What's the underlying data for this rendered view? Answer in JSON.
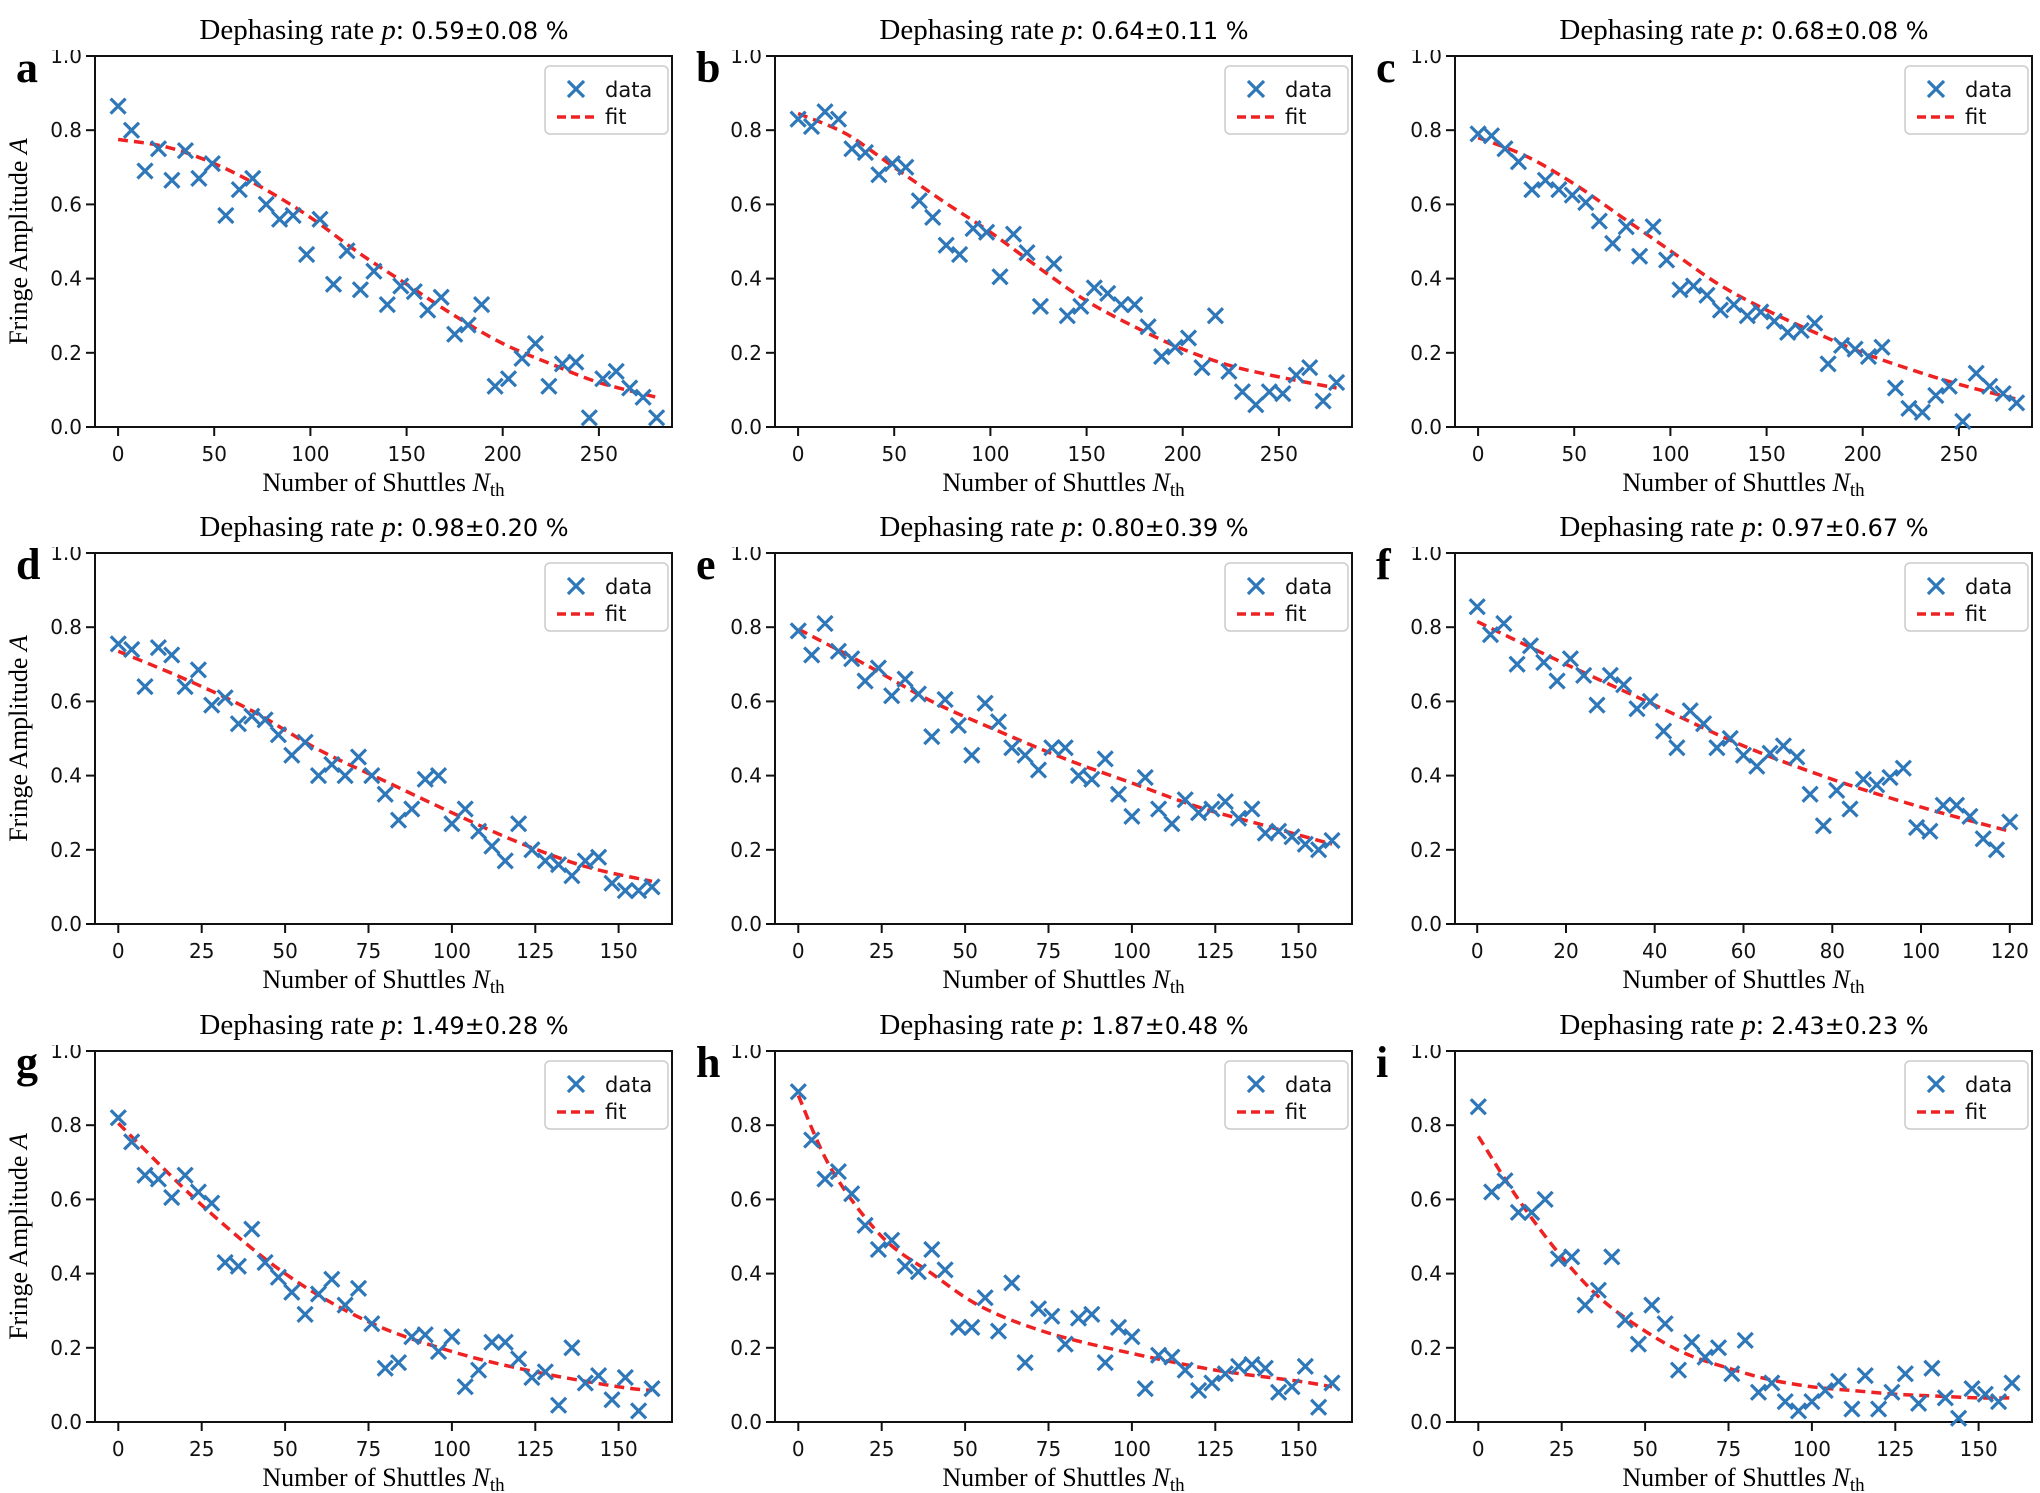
{
  "figure": {
    "title_prefix": "Dephasing rate ",
    "title_symbol": "p",
    "title_sep": ": ",
    "xlabel": {
      "text": "Number of Shuttles",
      "symbol": "N",
      "subscript": "th"
    },
    "ylabel": {
      "text": "Fringe Amplitude",
      "symbol": "A"
    },
    "legend": {
      "data_label": "data",
      "fit_label": "fit",
      "position": "upper right"
    },
    "yticks": [
      0.0,
      0.2,
      0.4,
      0.6,
      0.8,
      1.0
    ],
    "ylim": [
      0,
      1
    ],
    "grid": "off",
    "colors": {
      "data_marker": "#2e77b8",
      "fit_line": "#ee2222",
      "axis": "#111111",
      "legend_border": "#cccccc",
      "background": "#ffffff"
    }
  },
  "chart_data": [
    {
      "panel": "a",
      "type": "scatter",
      "title": "Dephasing rate p: 0.59±0.08 %",
      "title_value": "0.59±0.08 %",
      "p": 0.59,
      "p_err": 0.08,
      "xlabel": "Number of Shuttles N_th",
      "ylabel": "Fringe Amplitude A",
      "legend": [
        "data",
        "fit"
      ],
      "xlim": [
        -12,
        288
      ],
      "ylim": [
        0,
        1
      ],
      "xticks": [
        0,
        50,
        100,
        150,
        200,
        250
      ],
      "x": [
        0,
        7,
        14,
        21,
        28,
        35,
        42,
        49,
        56,
        63,
        70,
        77,
        84,
        91,
        98,
        105,
        112,
        119,
        126,
        133,
        140,
        147,
        154,
        161,
        168,
        175,
        182,
        189,
        196,
        203,
        210,
        217,
        224,
        231,
        238,
        245,
        252,
        259,
        266,
        273,
        280
      ],
      "y": [
        0.865,
        0.8,
        0.69,
        0.75,
        0.665,
        0.745,
        0.67,
        0.71,
        0.57,
        0.64,
        0.67,
        0.6,
        0.56,
        0.57,
        0.465,
        0.56,
        0.385,
        0.475,
        0.37,
        0.42,
        0.33,
        0.38,
        0.365,
        0.315,
        0.35,
        0.25,
        0.275,
        0.33,
        0.11,
        0.13,
        0.185,
        0.225,
        0.11,
        0.17,
        0.175,
        0.025,
        0.13,
        0.15,
        0.105,
        0.08,
        0.025
      ],
      "fit_x": [
        0,
        25,
        50,
        75,
        100,
        125,
        150,
        175,
        200,
        225,
        250,
        280
      ],
      "fit_y": [
        0.775,
        0.755,
        0.71,
        0.645,
        0.565,
        0.47,
        0.385,
        0.3,
        0.225,
        0.17,
        0.12,
        0.08
      ]
    },
    {
      "panel": "b",
      "type": "scatter",
      "title": "Dephasing rate p: 0.64±0.11 %",
      "title_value": "0.64±0.11 %",
      "p": 0.64,
      "p_err": 0.11,
      "xlabel": "Number of Shuttles N_th",
      "ylabel": "Fringe Amplitude A",
      "legend": [
        "data",
        "fit"
      ],
      "xlim": [
        -12,
        288
      ],
      "ylim": [
        0,
        1
      ],
      "xticks": [
        0,
        50,
        100,
        150,
        200,
        250
      ],
      "x": [
        0,
        7,
        14,
        21,
        28,
        35,
        42,
        49,
        56,
        63,
        70,
        77,
        84,
        91,
        98,
        105,
        112,
        119,
        126,
        133,
        140,
        147,
        154,
        161,
        168,
        175,
        182,
        189,
        196,
        203,
        210,
        217,
        224,
        231,
        238,
        245,
        252,
        259,
        266,
        273,
        280
      ],
      "y": [
        0.83,
        0.81,
        0.85,
        0.83,
        0.75,
        0.74,
        0.68,
        0.71,
        0.7,
        0.61,
        0.565,
        0.49,
        0.465,
        0.535,
        0.525,
        0.405,
        0.52,
        0.47,
        0.325,
        0.44,
        0.3,
        0.325,
        0.375,
        0.36,
        0.33,
        0.33,
        0.27,
        0.19,
        0.215,
        0.24,
        0.16,
        0.3,
        0.15,
        0.095,
        0.06,
        0.095,
        0.09,
        0.14,
        0.16,
        0.07,
        0.12
      ],
      "fit_x": [
        0,
        25,
        50,
        75,
        100,
        125,
        150,
        175,
        200,
        225,
        250,
        280
      ],
      "fit_y": [
        0.845,
        0.79,
        0.7,
        0.61,
        0.525,
        0.43,
        0.34,
        0.27,
        0.21,
        0.165,
        0.135,
        0.105
      ]
    },
    {
      "panel": "c",
      "type": "scatter",
      "title": "Dephasing rate p: 0.68±0.08 %",
      "title_value": "0.68±0.08 %",
      "p": 0.68,
      "p_err": 0.08,
      "xlabel": "Number of Shuttles N_th",
      "ylabel": "Fringe Amplitude A",
      "legend": [
        "data",
        "fit"
      ],
      "xlim": [
        -12,
        288
      ],
      "ylim": [
        0,
        1
      ],
      "xticks": [
        0,
        50,
        100,
        150,
        200,
        250
      ],
      "x": [
        0,
        7,
        14,
        21,
        28,
        35,
        42,
        49,
        56,
        63,
        70,
        77,
        84,
        91,
        98,
        105,
        112,
        119,
        126,
        133,
        140,
        147,
        154,
        161,
        168,
        175,
        182,
        189,
        196,
        203,
        210,
        217,
        224,
        231,
        238,
        245,
        252,
        259,
        266,
        273,
        280
      ],
      "y": [
        0.79,
        0.785,
        0.75,
        0.715,
        0.64,
        0.665,
        0.64,
        0.625,
        0.605,
        0.555,
        0.495,
        0.54,
        0.46,
        0.54,
        0.45,
        0.37,
        0.38,
        0.355,
        0.315,
        0.33,
        0.3,
        0.31,
        0.285,
        0.255,
        0.26,
        0.28,
        0.17,
        0.22,
        0.21,
        0.19,
        0.215,
        0.105,
        0.05,
        0.04,
        0.085,
        0.11,
        0.015,
        0.145,
        0.11,
        0.09,
        0.065
      ],
      "fit_x": [
        0,
        25,
        50,
        75,
        100,
        125,
        150,
        175,
        200,
        225,
        250,
        280
      ],
      "fit_y": [
        0.78,
        0.73,
        0.655,
        0.565,
        0.475,
        0.385,
        0.315,
        0.255,
        0.2,
        0.155,
        0.115,
        0.075
      ]
    },
    {
      "panel": "d",
      "type": "scatter",
      "title": "Dephasing rate p: 0.98±0.20 %",
      "title_value": "0.98±0.20 %",
      "p": 0.98,
      "p_err": 0.2,
      "xlabel": "Number of Shuttles N_th",
      "ylabel": "Fringe Amplitude A",
      "legend": [
        "data",
        "fit"
      ],
      "xlim": [
        -7,
        166
      ],
      "ylim": [
        0,
        1
      ],
      "xticks": [
        0,
        25,
        50,
        75,
        100,
        125,
        150
      ],
      "x": [
        0,
        4,
        8,
        12,
        16,
        20,
        24,
        28,
        32,
        36,
        40,
        44,
        48,
        52,
        56,
        60,
        64,
        68,
        72,
        76,
        80,
        84,
        88,
        92,
        96,
        100,
        104,
        108,
        112,
        116,
        120,
        124,
        128,
        132,
        136,
        140,
        144,
        148,
        152,
        156,
        160
      ],
      "y": [
        0.755,
        0.74,
        0.64,
        0.745,
        0.725,
        0.64,
        0.685,
        0.59,
        0.61,
        0.54,
        0.56,
        0.55,
        0.51,
        0.455,
        0.49,
        0.4,
        0.43,
        0.4,
        0.45,
        0.4,
        0.35,
        0.28,
        0.31,
        0.39,
        0.4,
        0.27,
        0.31,
        0.25,
        0.21,
        0.17,
        0.27,
        0.2,
        0.17,
        0.16,
        0.13,
        0.17,
        0.18,
        0.11,
        0.09,
        0.09,
        0.1
      ],
      "fit_x": [
        0,
        20,
        40,
        60,
        80,
        100,
        120,
        140,
        160
      ],
      "fit_y": [
        0.735,
        0.66,
        0.575,
        0.47,
        0.385,
        0.3,
        0.22,
        0.155,
        0.115
      ]
    },
    {
      "panel": "e",
      "type": "scatter",
      "title": "Dephasing rate p: 0.80±0.39 %",
      "title_value": "0.80±0.39 %",
      "p": 0.8,
      "p_err": 0.39,
      "xlabel": "Number of Shuttles N_th",
      "ylabel": "Fringe Amplitude A",
      "legend": [
        "data",
        "fit"
      ],
      "xlim": [
        -7,
        166
      ],
      "ylim": [
        0,
        1
      ],
      "xticks": [
        0,
        25,
        50,
        75,
        100,
        125,
        150
      ],
      "x": [
        0,
        4,
        8,
        12,
        16,
        20,
        24,
        28,
        32,
        36,
        40,
        44,
        48,
        52,
        56,
        60,
        64,
        68,
        72,
        76,
        80,
        84,
        88,
        92,
        96,
        100,
        104,
        108,
        112,
        116,
        120,
        124,
        128,
        132,
        136,
        140,
        144,
        148,
        152,
        156,
        160
      ],
      "y": [
        0.79,
        0.725,
        0.81,
        0.735,
        0.715,
        0.655,
        0.69,
        0.615,
        0.66,
        0.62,
        0.505,
        0.605,
        0.535,
        0.455,
        0.595,
        0.545,
        0.475,
        0.455,
        0.415,
        0.475,
        0.475,
        0.4,
        0.39,
        0.445,
        0.35,
        0.29,
        0.395,
        0.31,
        0.27,
        0.335,
        0.3,
        0.31,
        0.33,
        0.285,
        0.31,
        0.245,
        0.25,
        0.235,
        0.215,
        0.2,
        0.225
      ],
      "fit_x": [
        0,
        20,
        40,
        60,
        80,
        100,
        120,
        140,
        160
      ],
      "fit_y": [
        0.795,
        0.7,
        0.6,
        0.52,
        0.445,
        0.38,
        0.315,
        0.265,
        0.215
      ]
    },
    {
      "panel": "f",
      "type": "scatter",
      "title": "Dephasing rate p: 0.97±0.67 %",
      "title_value": "0.97±0.67 %",
      "p": 0.97,
      "p_err": 0.67,
      "xlabel": "Number of Shuttles N_th",
      "ylabel": "Fringe Amplitude A",
      "legend": [
        "data",
        "fit"
      ],
      "xlim": [
        -5,
        125
      ],
      "ylim": [
        0,
        1
      ],
      "xticks": [
        0,
        20,
        40,
        60,
        80,
        100,
        120
      ],
      "x": [
        0,
        3,
        6,
        9,
        12,
        15,
        18,
        21,
        24,
        27,
        30,
        33,
        36,
        39,
        42,
        45,
        48,
        51,
        54,
        57,
        60,
        63,
        66,
        69,
        72,
        75,
        78,
        81,
        84,
        87,
        90,
        93,
        96,
        99,
        102,
        105,
        108,
        111,
        114,
        117,
        120
      ],
      "y": [
        0.855,
        0.78,
        0.81,
        0.7,
        0.75,
        0.705,
        0.655,
        0.715,
        0.67,
        0.59,
        0.67,
        0.645,
        0.58,
        0.6,
        0.52,
        0.475,
        0.575,
        0.54,
        0.475,
        0.5,
        0.455,
        0.425,
        0.46,
        0.48,
        0.45,
        0.35,
        0.265,
        0.36,
        0.31,
        0.39,
        0.375,
        0.395,
        0.42,
        0.26,
        0.25,
        0.32,
        0.32,
        0.29,
        0.23,
        0.2,
        0.275
      ],
      "fit_x": [
        0,
        20,
        40,
        60,
        80,
        100,
        120
      ],
      "fit_y": [
        0.815,
        0.7,
        0.59,
        0.48,
        0.39,
        0.315,
        0.25
      ]
    },
    {
      "panel": "g",
      "type": "scatter",
      "title": "Dephasing rate p: 1.49±0.28 %",
      "title_value": "1.49±0.28 %",
      "p": 1.49,
      "p_err": 0.28,
      "xlabel": "Number of Shuttles N_th",
      "ylabel": "Fringe Amplitude A",
      "legend": [
        "data",
        "fit"
      ],
      "xlim": [
        -7,
        166
      ],
      "ylim": [
        0,
        1
      ],
      "xticks": [
        0,
        25,
        50,
        75,
        100,
        125,
        150
      ],
      "x": [
        0,
        4,
        8,
        12,
        16,
        20,
        24,
        28,
        32,
        36,
        40,
        44,
        48,
        52,
        56,
        60,
        64,
        68,
        72,
        76,
        80,
        84,
        88,
        92,
        96,
        100,
        104,
        108,
        112,
        116,
        120,
        124,
        128,
        132,
        136,
        140,
        144,
        148,
        152,
        156,
        160
      ],
      "y": [
        0.82,
        0.755,
        0.665,
        0.655,
        0.605,
        0.665,
        0.62,
        0.59,
        0.43,
        0.42,
        0.52,
        0.43,
        0.39,
        0.35,
        0.29,
        0.345,
        0.385,
        0.315,
        0.36,
        0.265,
        0.145,
        0.16,
        0.23,
        0.235,
        0.19,
        0.23,
        0.095,
        0.14,
        0.215,
        0.215,
        0.17,
        0.12,
        0.135,
        0.045,
        0.2,
        0.105,
        0.125,
        0.06,
        0.12,
        0.03,
        0.09
      ],
      "fit_x": [
        0,
        25,
        50,
        75,
        100,
        125,
        150,
        160
      ],
      "fit_y": [
        0.805,
        0.585,
        0.4,
        0.27,
        0.19,
        0.135,
        0.095,
        0.085
      ]
    },
    {
      "panel": "h",
      "type": "scatter",
      "title": "Dephasing rate p: 1.87±0.48 %",
      "title_value": "1.87±0.48 %",
      "p": 1.87,
      "p_err": 0.48,
      "xlabel": "Number of Shuttles N_th",
      "ylabel": "Fringe Amplitude A",
      "legend": [
        "data",
        "fit"
      ],
      "xlim": [
        -7,
        166
      ],
      "ylim": [
        0,
        1
      ],
      "xticks": [
        0,
        25,
        50,
        75,
        100,
        125,
        150
      ],
      "x": [
        0,
        4,
        8,
        12,
        16,
        20,
        24,
        28,
        32,
        36,
        40,
        44,
        48,
        52,
        56,
        60,
        64,
        68,
        72,
        76,
        80,
        84,
        88,
        92,
        96,
        100,
        104,
        108,
        112,
        116,
        120,
        124,
        128,
        132,
        136,
        140,
        144,
        148,
        152,
        156,
        160
      ],
      "y": [
        0.89,
        0.76,
        0.655,
        0.675,
        0.615,
        0.53,
        0.465,
        0.49,
        0.42,
        0.405,
        0.465,
        0.41,
        0.255,
        0.255,
        0.335,
        0.245,
        0.375,
        0.16,
        0.305,
        0.285,
        0.21,
        0.28,
        0.29,
        0.16,
        0.255,
        0.23,
        0.09,
        0.18,
        0.175,
        0.14,
        0.085,
        0.105,
        0.13,
        0.15,
        0.155,
        0.145,
        0.08,
        0.095,
        0.15,
        0.04,
        0.105
      ],
      "fit_x": [
        0,
        10,
        25,
        40,
        55,
        75,
        100,
        125,
        150,
        160
      ],
      "fit_y": [
        0.88,
        0.68,
        0.5,
        0.4,
        0.31,
        0.24,
        0.185,
        0.14,
        0.11,
        0.095
      ]
    },
    {
      "panel": "i",
      "type": "scatter",
      "title": "Dephasing rate p: 2.43±0.23 %",
      "title_value": "2.43±0.23 %",
      "p": 2.43,
      "p_err": 0.23,
      "xlabel": "Number of Shuttles N_th",
      "ylabel": "Fringe Amplitude A",
      "legend": [
        "data",
        "fit"
      ],
      "xlim": [
        -7,
        166
      ],
      "ylim": [
        0,
        1
      ],
      "xticks": [
        0,
        25,
        50,
        75,
        100,
        125,
        150
      ],
      "x": [
        0,
        4,
        8,
        12,
        16,
        20,
        24,
        28,
        32,
        36,
        40,
        44,
        48,
        52,
        56,
        60,
        64,
        68,
        72,
        76,
        80,
        84,
        88,
        92,
        96,
        100,
        104,
        108,
        112,
        116,
        120,
        124,
        128,
        132,
        136,
        140,
        144,
        148,
        152,
        156,
        160
      ],
      "y": [
        0.85,
        0.62,
        0.65,
        0.565,
        0.565,
        0.6,
        0.44,
        0.445,
        0.315,
        0.355,
        0.445,
        0.275,
        0.21,
        0.315,
        0.265,
        0.14,
        0.215,
        0.175,
        0.2,
        0.13,
        0.22,
        0.08,
        0.105,
        0.055,
        0.03,
        0.055,
        0.085,
        0.11,
        0.035,
        0.125,
        0.035,
        0.08,
        0.13,
        0.05,
        0.145,
        0.065,
        0.01,
        0.09,
        0.075,
        0.055,
        0.105
      ],
      "fit_x": [
        0,
        12,
        25,
        37,
        50,
        62,
        75,
        87,
        100,
        112,
        125,
        137,
        150,
        160
      ],
      "fit_y": [
        0.77,
        0.6,
        0.445,
        0.33,
        0.245,
        0.185,
        0.145,
        0.115,
        0.095,
        0.085,
        0.075,
        0.07,
        0.065,
        0.065
      ]
    }
  ]
}
